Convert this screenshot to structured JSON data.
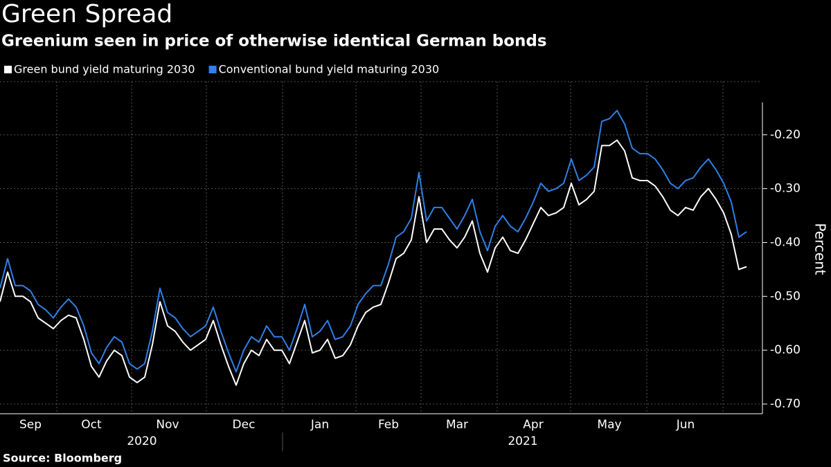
{
  "chart_data": {
    "type": "line",
    "title": "Green Spread",
    "subtitle": "Greenium seen in price of otherwise identical German bonds",
    "y_axis_label": "Percent",
    "source": "Source: Bloomberg",
    "x_group_labels": [
      "2020",
      "2021"
    ],
    "categories": [
      null,
      null,
      null,
      null,
      "Sep",
      null,
      null,
      null,
      null,
      null,
      null,
      null,
      "Oct",
      null,
      null,
      null,
      null,
      null,
      null,
      null,
      null,
      null,
      "Nov",
      null,
      null,
      null,
      null,
      null,
      null,
      null,
      null,
      null,
      "Dec",
      null,
      null,
      null,
      null,
      null,
      null,
      null,
      null,
      null,
      "Jan",
      null,
      null,
      null,
      null,
      null,
      null,
      null,
      null,
      "Feb",
      null,
      null,
      null,
      null,
      null,
      null,
      null,
      null,
      "Mar",
      null,
      null,
      null,
      null,
      null,
      null,
      null,
      null,
      null,
      "Apr",
      null,
      null,
      null,
      null,
      null,
      null,
      null,
      null,
      null,
      "May",
      null,
      null,
      null,
      null,
      null,
      null,
      null,
      null,
      null,
      "Jun",
      null,
      null,
      null,
      null,
      null,
      null,
      null,
      null
    ],
    "series": [
      {
        "name": "Green bund yield maturing 2030",
        "color": "#ffffff",
        "values": [
          -0.51,
          -0.455,
          -0.5,
          -0.5,
          -0.51,
          -0.54,
          -0.55,
          -0.56,
          -0.545,
          -0.535,
          -0.54,
          -0.58,
          -0.63,
          -0.65,
          -0.62,
          -0.6,
          -0.61,
          -0.65,
          -0.66,
          -0.65,
          -0.59,
          -0.51,
          -0.555,
          -0.565,
          -0.585,
          -0.6,
          -0.59,
          -0.58,
          -0.545,
          -0.59,
          -0.63,
          -0.665,
          -0.625,
          -0.6,
          -0.61,
          -0.58,
          -0.6,
          -0.6,
          -0.625,
          -0.585,
          -0.545,
          -0.605,
          -0.6,
          -0.58,
          -0.615,
          -0.61,
          -0.59,
          -0.555,
          -0.53,
          -0.52,
          -0.515,
          -0.475,
          -0.43,
          -0.42,
          -0.395,
          -0.315,
          -0.4,
          -0.375,
          -0.375,
          -0.395,
          -0.41,
          -0.39,
          -0.36,
          -0.42,
          -0.455,
          -0.41,
          -0.39,
          -0.415,
          -0.42,
          -0.395,
          -0.365,
          -0.335,
          -0.35,
          -0.345,
          -0.335,
          -0.29,
          -0.33,
          -0.32,
          -0.305,
          -0.22,
          -0.22,
          -0.21,
          -0.23,
          -0.28,
          -0.285,
          -0.285,
          -0.295,
          -0.315,
          -0.34,
          -0.35,
          -0.335,
          -0.34,
          -0.315,
          -0.3,
          -0.32,
          -0.345,
          -0.385,
          -0.45,
          -0.445
        ]
      },
      {
        "name": "Conventional bund yield maturing 2030",
        "color": "#2f80e8",
        "values": [
          -0.485,
          -0.43,
          -0.48,
          -0.48,
          -0.49,
          -0.515,
          -0.525,
          -0.54,
          -0.52,
          -0.505,
          -0.52,
          -0.555,
          -0.605,
          -0.625,
          -0.595,
          -0.575,
          -0.585,
          -0.625,
          -0.635,
          -0.625,
          -0.565,
          -0.485,
          -0.53,
          -0.54,
          -0.56,
          -0.575,
          -0.565,
          -0.555,
          -0.52,
          -0.565,
          -0.605,
          -0.64,
          -0.6,
          -0.575,
          -0.585,
          -0.555,
          -0.575,
          -0.575,
          -0.6,
          -0.56,
          -0.515,
          -0.575,
          -0.565,
          -0.545,
          -0.58,
          -0.575,
          -0.555,
          -0.515,
          -0.495,
          -0.48,
          -0.48,
          -0.44,
          -0.39,
          -0.38,
          -0.355,
          -0.27,
          -0.36,
          -0.335,
          -0.335,
          -0.355,
          -0.375,
          -0.35,
          -0.32,
          -0.38,
          -0.415,
          -0.37,
          -0.35,
          -0.37,
          -0.38,
          -0.355,
          -0.325,
          -0.29,
          -0.305,
          -0.3,
          -0.29,
          -0.245,
          -0.285,
          -0.275,
          -0.26,
          -0.175,
          -0.17,
          -0.155,
          -0.18,
          -0.225,
          -0.235,
          -0.235,
          -0.245,
          -0.265,
          -0.29,
          -0.3,
          -0.285,
          -0.28,
          -0.26,
          -0.245,
          -0.265,
          -0.29,
          -0.325,
          -0.39,
          -0.38
        ]
      }
    ],
    "ylim": [
      -0.718,
      -0.136
    ],
    "yticks": [
      {
        "value": -0.7,
        "label": "-0.70"
      },
      {
        "value": -0.6,
        "label": "-0.60"
      },
      {
        "value": -0.5,
        "label": "-0.50"
      },
      {
        "value": -0.4,
        "label": "-0.40"
      },
      {
        "value": -0.3,
        "label": "-0.30"
      },
      {
        "value": -0.2,
        "label": "-0.20"
      }
    ],
    "grid": true
  }
}
